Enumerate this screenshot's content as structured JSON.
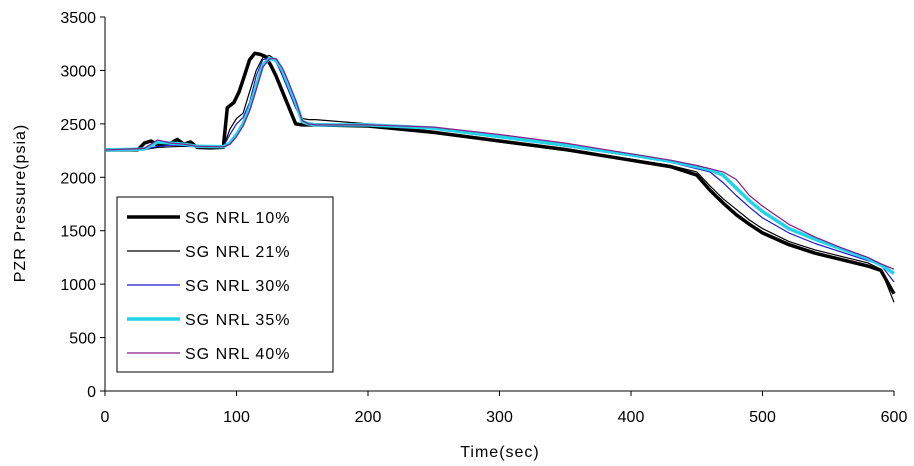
{
  "chart_data": {
    "type": "line",
    "title": "",
    "xlabel": "Time(sec)",
    "ylabel": "PZR Pressure(psia)",
    "xlim": [
      0,
      600
    ],
    "ylim": [
      0,
      3500
    ],
    "x_ticks": [
      0,
      100,
      200,
      300,
      400,
      500,
      600
    ],
    "y_ticks": [
      0,
      500,
      1000,
      1500,
      2000,
      2500,
      3000,
      3500
    ],
    "grid": false,
    "legend_position": "left-bottom",
    "series": [
      {
        "name": "SG NRL 10%",
        "color": "#000000",
        "x": [
          0,
          20,
          25,
          30,
          35,
          40,
          45,
          50,
          55,
          60,
          65,
          70,
          80,
          90,
          93,
          98,
          102,
          106,
          110,
          114,
          118,
          122,
          126,
          130,
          135,
          140,
          145,
          150,
          160,
          200,
          250,
          300,
          350,
          400,
          430,
          450,
          460,
          470,
          480,
          490,
          500,
          520,
          540,
          560,
          580,
          590,
          600
        ],
        "y": [
          2255,
          2258,
          2258,
          2320,
          2340,
          2300,
          2310,
          2320,
          2355,
          2310,
          2330,
          2280,
          2275,
          2280,
          2650,
          2700,
          2800,
          2950,
          3100,
          3160,
          3150,
          3130,
          3050,
          2950,
          2800,
          2650,
          2500,
          2490,
          2490,
          2480,
          2420,
          2340,
          2260,
          2160,
          2100,
          2020,
          1880,
          1760,
          1650,
          1560,
          1480,
          1370,
          1290,
          1230,
          1170,
          1130,
          910
        ]
      },
      {
        "name": "SG NRL 21%",
        "color": "#000000",
        "x": [
          0,
          30,
          40,
          50,
          60,
          70,
          90,
          95,
          100,
          105,
          110,
          115,
          120,
          125,
          130,
          135,
          140,
          145,
          150,
          155,
          160,
          200,
          250,
          300,
          350,
          400,
          430,
          450,
          460,
          470,
          480,
          490,
          500,
          520,
          540,
          560,
          580,
          590,
          600
        ],
        "y": [
          2255,
          2260,
          2280,
          2285,
          2290,
          2285,
          2280,
          2450,
          2550,
          2600,
          2800,
          3000,
          3120,
          3140,
          3100,
          2950,
          2800,
          2650,
          2550,
          2540,
          2540,
          2500,
          2430,
          2330,
          2250,
          2170,
          2110,
          2050,
          1920,
          1800,
          1700,
          1600,
          1520,
          1400,
          1320,
          1260,
          1200,
          1140,
          830
        ]
      },
      {
        "name": "SG NRL 30%",
        "color": "#1a1ad4",
        "x": [
          0,
          30,
          40,
          50,
          60,
          70,
          90,
          95,
          100,
          105,
          110,
          115,
          120,
          125,
          130,
          135,
          140,
          145,
          150,
          155,
          160,
          200,
          250,
          300,
          350,
          400,
          430,
          450,
          460,
          470,
          480,
          490,
          500,
          520,
          540,
          560,
          580,
          590,
          600
        ],
        "y": [
          2255,
          2260,
          2290,
          2300,
          2295,
          2290,
          2285,
          2400,
          2500,
          2560,
          2700,
          2950,
          3100,
          3120,
          3080,
          2950,
          2800,
          2650,
          2520,
          2500,
          2500,
          2490,
          2450,
          2370,
          2290,
          2200,
          2140,
          2080,
          2050,
          1950,
          1830,
          1720,
          1620,
          1480,
          1380,
          1300,
          1220,
          1180,
          1020
        ]
      },
      {
        "name": "SG NRL 35%",
        "color": "#22d4e8",
        "x": [
          0,
          30,
          40,
          50,
          60,
          70,
          90,
          95,
          100,
          105,
          110,
          115,
          120,
          125,
          130,
          135,
          140,
          145,
          150,
          155,
          160,
          200,
          250,
          300,
          350,
          400,
          430,
          450,
          460,
          470,
          480,
          490,
          500,
          520,
          540,
          560,
          580,
          590,
          600
        ],
        "y": [
          2255,
          2265,
          2330,
          2320,
          2310,
          2290,
          2285,
          2320,
          2400,
          2500,
          2650,
          2850,
          3050,
          3110,
          3100,
          3000,
          2850,
          2700,
          2520,
          2500,
          2490,
          2490,
          2460,
          2380,
          2300,
          2210,
          2150,
          2100,
          2070,
          2020,
          1900,
          1780,
          1680,
          1520,
          1420,
          1330,
          1240,
          1180,
          1100
        ]
      },
      {
        "name": "SG NRL 40%",
        "color": "#8b1a8b",
        "x": [
          0,
          30,
          40,
          50,
          60,
          70,
          90,
          95,
          100,
          105,
          110,
          115,
          120,
          125,
          130,
          135,
          140,
          145,
          150,
          155,
          160,
          200,
          250,
          300,
          350,
          400,
          430,
          450,
          460,
          470,
          480,
          490,
          500,
          520,
          540,
          560,
          580,
          590,
          600
        ],
        "y": [
          2255,
          2270,
          2350,
          2320,
          2310,
          2290,
          2285,
          2310,
          2380,
          2480,
          2620,
          2820,
          3030,
          3110,
          3110,
          3020,
          2880,
          2720,
          2530,
          2500,
          2490,
          2490,
          2470,
          2400,
          2320,
          2220,
          2160,
          2110,
          2080,
          2050,
          1980,
          1830,
          1730,
          1560,
          1440,
          1340,
          1250,
          1190,
          1140
        ]
      }
    ]
  }
}
